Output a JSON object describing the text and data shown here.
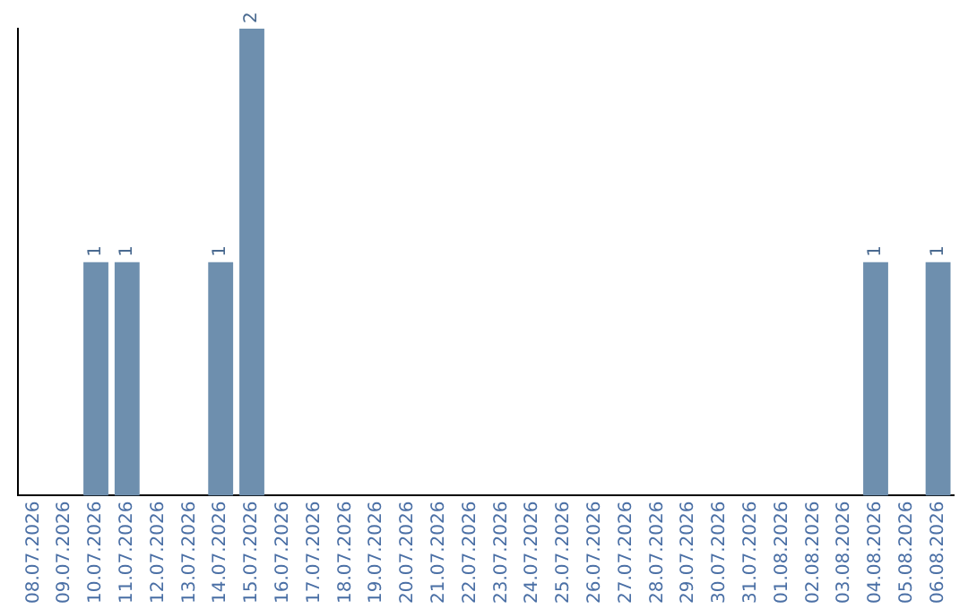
{
  "chart_data": {
    "type": "bar",
    "categories": [
      "08.07.2026",
      "09.07.2026",
      "10.07.2026",
      "11.07.2026",
      "12.07.2026",
      "13.07.2026",
      "14.07.2026",
      "15.07.2026",
      "16.07.2026",
      "17.07.2026",
      "18.07.2026",
      "19.07.2026",
      "20.07.2026",
      "21.07.2026",
      "22.07.2026",
      "23.07.2026",
      "24.07.2026",
      "25.07.2026",
      "26.07.2026",
      "27.07.2026",
      "28.07.2026",
      "29.07.2026",
      "30.07.2026",
      "31.07.2026",
      "01.08.2026",
      "02.08.2026",
      "03.08.2026",
      "04.08.2026",
      "05.08.2026",
      "06.08.2026"
    ],
    "values": [
      0,
      0,
      1,
      1,
      0,
      0,
      1,
      2,
      0,
      0,
      0,
      0,
      0,
      0,
      0,
      0,
      0,
      0,
      0,
      0,
      0,
      0,
      0,
      0,
      0,
      0,
      0,
      1,
      0,
      1
    ],
    "value_labels": [
      null,
      null,
      "1",
      "1",
      null,
      null,
      "1",
      "2",
      null,
      null,
      null,
      null,
      null,
      null,
      null,
      null,
      null,
      null,
      null,
      null,
      null,
      null,
      null,
      null,
      null,
      null,
      null,
      "1",
      null,
      "1"
    ],
    "color": "#6e8fae",
    "grid": false,
    "legend": false
  }
}
